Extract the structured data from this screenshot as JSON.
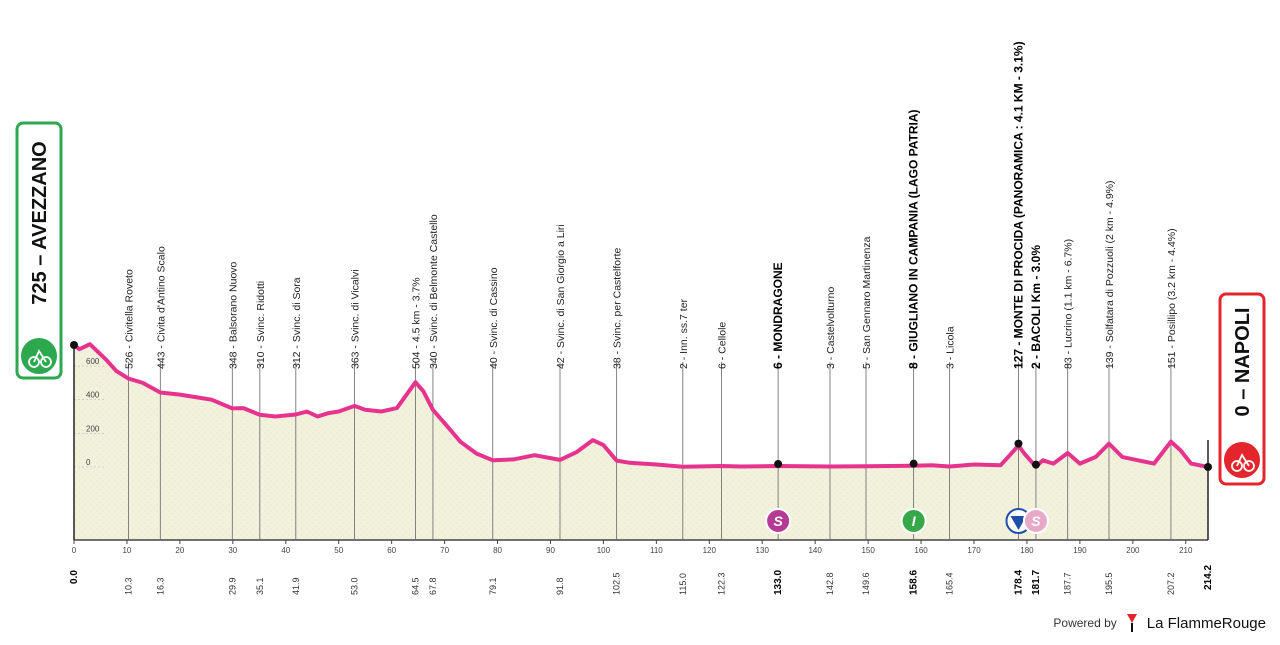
{
  "chart_data": {
    "type": "area",
    "xlim": [
      0,
      214.2
    ],
    "ylim": [
      -400,
      900
    ],
    "x_ticks": [
      0,
      10,
      20,
      30,
      40,
      50,
      60,
      70,
      80,
      90,
      100,
      110,
      120,
      130,
      140,
      150,
      160,
      170,
      180,
      190,
      200,
      210
    ],
    "y_ticks": [
      0,
      200,
      400,
      600
    ],
    "start": {
      "km": "0.0",
      "label": "725 – AVEZZANO",
      "color": "#2da84f"
    },
    "finish": {
      "km": "214.2",
      "label": "0 – NAPOLI",
      "color": "#e3262b"
    },
    "line_color": "#e6338e",
    "fill_color": "#f1f1dc",
    "profile": [
      [
        0,
        725
      ],
      [
        1,
        700
      ],
      [
        3,
        730
      ],
      [
        6,
        640
      ],
      [
        8,
        570
      ],
      [
        10.3,
        526
      ],
      [
        13,
        500
      ],
      [
        16.3,
        443
      ],
      [
        20,
        430
      ],
      [
        24,
        410
      ],
      [
        26,
        400
      ],
      [
        29.9,
        348
      ],
      [
        32,
        350
      ],
      [
        35.1,
        310
      ],
      [
        38,
        300
      ],
      [
        41.9,
        312
      ],
      [
        44,
        330
      ],
      [
        46,
        300
      ],
      [
        48,
        320
      ],
      [
        50,
        330
      ],
      [
        53.0,
        363
      ],
      [
        55,
        340
      ],
      [
        58,
        330
      ],
      [
        61,
        350
      ],
      [
        64.5,
        504
      ],
      [
        66,
        450
      ],
      [
        67.8,
        340
      ],
      [
        70,
        260
      ],
      [
        73,
        150
      ],
      [
        76,
        80
      ],
      [
        79.1,
        40
      ],
      [
        83,
        45
      ],
      [
        87,
        70
      ],
      [
        91.8,
        42
      ],
      [
        95,
        90
      ],
      [
        98,
        160
      ],
      [
        100,
        130
      ],
      [
        102.5,
        38
      ],
      [
        105,
        25
      ],
      [
        110,
        15
      ],
      [
        115.0,
        2
      ],
      [
        122.3,
        6
      ],
      [
        126,
        3
      ],
      [
        133.0,
        6
      ],
      [
        142.8,
        3
      ],
      [
        149.6,
        5
      ],
      [
        158.6,
        8
      ],
      [
        162,
        10
      ],
      [
        165.4,
        3
      ],
      [
        170,
        15
      ],
      [
        175,
        10
      ],
      [
        178.4,
        127
      ],
      [
        179.5,
        80
      ],
      [
        181.7,
        2
      ],
      [
        183,
        40
      ],
      [
        185,
        20
      ],
      [
        187.7,
        83
      ],
      [
        190,
        20
      ],
      [
        193,
        60
      ],
      [
        195.5,
        139
      ],
      [
        198,
        60
      ],
      [
        201,
        40
      ],
      [
        204,
        20
      ],
      [
        207.2,
        151
      ],
      [
        209,
        100
      ],
      [
        211,
        20
      ],
      [
        214.2,
        0
      ]
    ],
    "points": [
      {
        "km": 10.3,
        "km_label": "10.3",
        "label": "526 - Civitella Roveto"
      },
      {
        "km": 16.3,
        "km_label": "16.3",
        "label": "443 - Civita d'Antino Scalo"
      },
      {
        "km": 29.9,
        "km_label": "29.9",
        "label": "348 - Balsorano Nuovo"
      },
      {
        "km": 35.1,
        "km_label": "35.1",
        "label": "310 - Svinc. Ridotti"
      },
      {
        "km": 41.9,
        "km_label": "41.9",
        "label": "312 - Svinc. di Sora"
      },
      {
        "km": 53.0,
        "km_label": "53.0",
        "label": "363 - Svinc. di Vicalvi"
      },
      {
        "km": 64.5,
        "km_label": "64.5",
        "label": "504 - 4.5 km - 3.7%"
      },
      {
        "km": 67.8,
        "km_label": "67.8",
        "label": "340 - Svinc. di Belmonte Castello"
      },
      {
        "km": 79.1,
        "km_label": "79.1",
        "label": "40 - Svinc. di Cassino"
      },
      {
        "km": 91.8,
        "km_label": "91.8",
        "label": "42 - Svinc. di San Giorgio a Liri"
      },
      {
        "km": 102.5,
        "km_label": "102.5",
        "label": "38 - Svinc. per Castelforte"
      },
      {
        "km": 115.0,
        "km_label": "115.0",
        "label": "2 - Inn. ss.7 ter"
      },
      {
        "km": 122.3,
        "km_label": "122.3",
        "label": "6 - Cellole"
      },
      {
        "km": 133.0,
        "km_label": "133.0",
        "label": "6 - MONDRAGONE",
        "bold": true
      },
      {
        "km": 142.8,
        "km_label": "142.8",
        "label": "3 - Castelvolturno"
      },
      {
        "km": 149.6,
        "km_label": "149.6",
        "label": "5 - San Gennaro Martinenza"
      },
      {
        "km": 158.6,
        "km_label": "158.6",
        "label": "8 - GIUGLIANO IN CAMPANIA (LAGO PATRIA)",
        "bold": true
      },
      {
        "km": 165.4,
        "km_label": "165.4",
        "label": "3 - Licola"
      },
      {
        "km": 178.4,
        "km_label": "178.4",
        "label": "127 - MONTE DI PROCIDA (PANORAMICA : 4.1 KM - 3.1%)",
        "bold": true
      },
      {
        "km": 181.7,
        "km_label": "181.7",
        "label": "2 - BACOLI Km - 3.0%",
        "bold": true
      },
      {
        "km": 187.7,
        "km_label": "187.7",
        "label": "83 - Lucrino (1.1 km - 6.7%)"
      },
      {
        "km": 195.5,
        "km_label": "195.5",
        "label": "139 - Solfatara di Pozzuoli (2 km - 4.9%)"
      },
      {
        "km": 207.2,
        "km_label": "207.2",
        "label": "151 - Posillipo (3.2 km - 4.4%)"
      }
    ],
    "badges": [
      {
        "km": 133.0,
        "text": "S",
        "color": "#b43b93"
      },
      {
        "km": 158.6,
        "text": "I",
        "color": "#36a84a"
      },
      {
        "km": 178.4,
        "text": "",
        "color": "#1f4fa8"
      },
      {
        "km": 181.7,
        "text": "S",
        "color": "#e8a9c8"
      }
    ]
  },
  "footer": {
    "powered": "Powered by",
    "brand": "La FlammeRouge"
  }
}
